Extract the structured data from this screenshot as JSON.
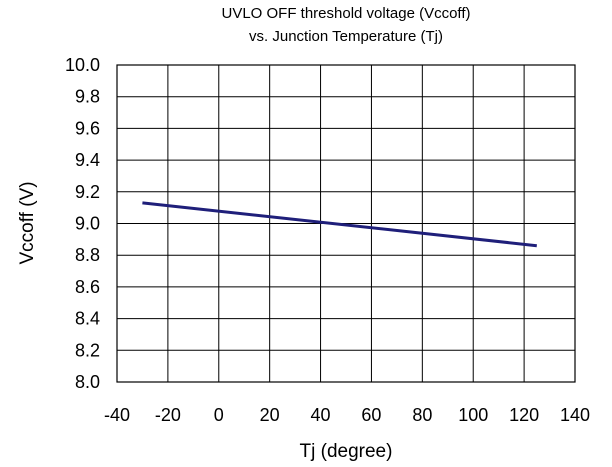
{
  "chart_data": {
    "type": "line",
    "title_line1": "UVLO OFF threshold voltage (Vccoff)",
    "title_line2": "vs. Junction Temperature (Tj)",
    "xlabel": "Tj (degree)",
    "ylabel": "Vccoff (V)",
    "xlim": [
      -40,
      140
    ],
    "ylim": [
      8.0,
      10.0
    ],
    "x_ticks": [
      "-40",
      "-20",
      "0",
      "20",
      "40",
      "60",
      "80",
      "100",
      "120",
      "140"
    ],
    "y_ticks": [
      "10.0",
      "9.8",
      "9.6",
      "9.4",
      "9.2",
      "9.0",
      "8.8",
      "8.6",
      "8.4",
      "8.2",
      "8.0"
    ],
    "grid": true,
    "series": [
      {
        "color": "#1f1f7a",
        "x": [
          -30,
          125
        ],
        "y": [
          9.13,
          8.86
        ]
      }
    ]
  }
}
